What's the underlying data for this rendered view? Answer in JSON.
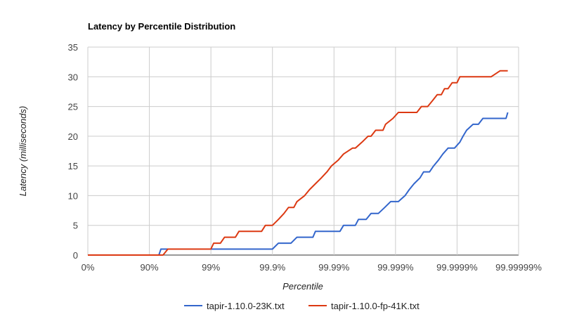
{
  "chart_data": {
    "type": "line",
    "title": "Latency by Percentile Distribution",
    "xlabel": "Percentile",
    "ylabel": "Latency (milliseconds)",
    "x_scale": "log-inverse",
    "x_ticks": [
      "0%",
      "90%",
      "99%",
      "99.9%",
      "99.99%",
      "99.999%",
      "99.9999%",
      "99.99999%"
    ],
    "y_ticks": [
      0,
      5,
      10,
      15,
      20,
      25,
      30,
      35
    ],
    "ylim": [
      0,
      35
    ],
    "grid": true,
    "legend_position": "bottom",
    "series": [
      {
        "name": "tapir-1.10.0-23K.txt",
        "color": "#3366cc",
        "points": [
          [
            0,
            0
          ],
          [
            93,
            0
          ],
          [
            93.5,
            1
          ],
          [
            99.9,
            1
          ],
          [
            99.92,
            2
          ],
          [
            99.95,
            2
          ],
          [
            99.96,
            3
          ],
          [
            99.978,
            3
          ],
          [
            99.98,
            4
          ],
          [
            99.992,
            4
          ],
          [
            99.993,
            5
          ],
          [
            99.9955,
            5
          ],
          [
            99.996,
            6
          ],
          [
            99.997,
            6
          ],
          [
            99.9975,
            7
          ],
          [
            99.9981,
            7
          ],
          [
            99.9985,
            8
          ],
          [
            99.9988,
            9
          ],
          [
            99.9991,
            9
          ],
          [
            99.9993,
            10
          ],
          [
            99.9994,
            11
          ],
          [
            99.9995,
            12
          ],
          [
            99.9996,
            13
          ],
          [
            99.99965,
            14
          ],
          [
            99.99972,
            14
          ],
          [
            99.99976,
            15
          ],
          [
            99.9998,
            16
          ],
          [
            99.99983,
            17
          ],
          [
            99.99986,
            18
          ],
          [
            99.99989,
            18
          ],
          [
            99.99991,
            19
          ],
          [
            99.99992,
            20
          ],
          [
            99.99993,
            21
          ],
          [
            99.999945,
            22
          ],
          [
            99.999955,
            22
          ],
          [
            99.999962,
            23
          ],
          [
            99.999984,
            23
          ],
          [
            99.999985,
            24
          ]
        ]
      },
      {
        "name": "tapir-1.10.0-fp-41K.txt",
        "color": "#dc3912",
        "points": [
          [
            0,
            0
          ],
          [
            94,
            0
          ],
          [
            95,
            1
          ],
          [
            99,
            1
          ],
          [
            99.1,
            2
          ],
          [
            99.3,
            2
          ],
          [
            99.4,
            3
          ],
          [
            99.6,
            3
          ],
          [
            99.65,
            4
          ],
          [
            99.85,
            4
          ],
          [
            99.87,
            5
          ],
          [
            99.9,
            5
          ],
          [
            99.92,
            6
          ],
          [
            99.935,
            7
          ],
          [
            99.945,
            8
          ],
          [
            99.955,
            8
          ],
          [
            99.96,
            9
          ],
          [
            99.97,
            10
          ],
          [
            99.975,
            11
          ],
          [
            99.98,
            12
          ],
          [
            99.984,
            13
          ],
          [
            99.987,
            14
          ],
          [
            99.989,
            15
          ],
          [
            99.9915,
            16
          ],
          [
            99.993,
            17
          ],
          [
            99.995,
            18
          ],
          [
            99.9955,
            18
          ],
          [
            99.9965,
            19
          ],
          [
            99.9972,
            20
          ],
          [
            99.9975,
            20
          ],
          [
            99.9979,
            21
          ],
          [
            99.9984,
            21
          ],
          [
            99.99855,
            22
          ],
          [
            99.9989,
            23
          ],
          [
            99.9991,
            24
          ],
          [
            99.99955,
            24
          ],
          [
            99.99962,
            25
          ],
          [
            99.9997,
            25
          ],
          [
            99.99975,
            26
          ],
          [
            99.99979,
            27
          ],
          [
            99.99982,
            27
          ],
          [
            99.99984,
            28
          ],
          [
            99.99986,
            28
          ],
          [
            99.99988,
            29
          ],
          [
            99.9999,
            29
          ],
          [
            99.99991,
            30
          ],
          [
            99.999972,
            30
          ],
          [
            99.99998,
            31
          ],
          [
            99.999985,
            31
          ]
        ]
      }
    ]
  }
}
